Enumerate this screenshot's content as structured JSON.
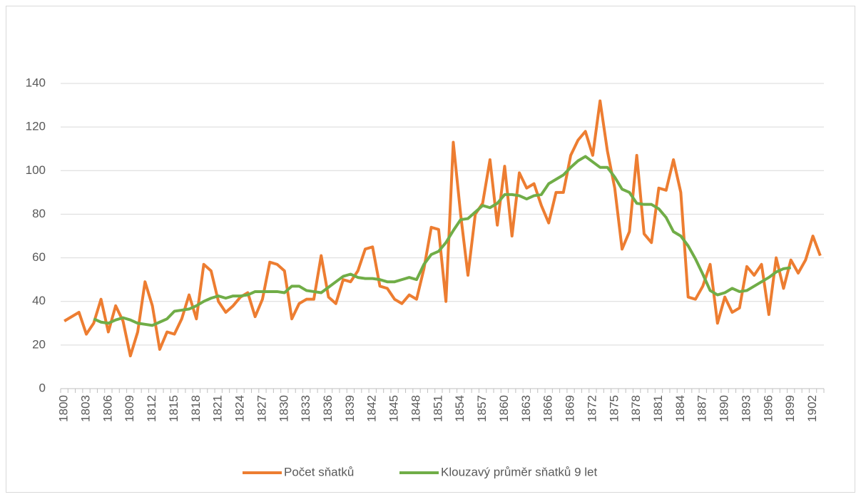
{
  "chart_data": {
    "type": "line",
    "categories": [
      "1800",
      null,
      null,
      "1803",
      null,
      null,
      "1806",
      null,
      null,
      "1809",
      null,
      null,
      "1812",
      null,
      null,
      "1815",
      null,
      null,
      "1818",
      null,
      null,
      "1821",
      null,
      null,
      "1824",
      null,
      null,
      "1827",
      null,
      null,
      "1830",
      null,
      null,
      "1833",
      null,
      null,
      "1836",
      null,
      null,
      "1839",
      null,
      null,
      "1842",
      null,
      null,
      "1845",
      null,
      null,
      "1848",
      null,
      null,
      "1851",
      null,
      null,
      "1854",
      null,
      null,
      "1857",
      null,
      null,
      "1860",
      null,
      null,
      "1863",
      null,
      null,
      "1866",
      null,
      null,
      "1869",
      null,
      null,
      "1872",
      null,
      null,
      "1875",
      null,
      null,
      "1878",
      null,
      null,
      "1881",
      null,
      null,
      "1884",
      null,
      null,
      "1887",
      null,
      null,
      "1890",
      null,
      null,
      "1893",
      null,
      null,
      "1896",
      null,
      null,
      "1899",
      null,
      null,
      "1902",
      null
    ],
    "series": [
      {
        "name": "Počet sňatků",
        "color": "#ed7d31",
        "values": [
          31,
          33,
          35,
          25,
          30,
          41,
          26,
          38,
          31,
          15,
          26,
          49,
          38,
          18,
          26,
          25,
          32,
          43,
          32,
          57,
          54,
          40,
          35,
          38,
          42,
          44,
          33,
          41,
          58,
          57,
          54,
          32,
          39,
          41,
          41,
          61,
          42,
          39,
          50,
          49,
          54,
          64,
          65,
          47,
          46,
          41,
          39,
          43,
          41,
          55,
          74,
          73,
          40,
          113,
          80,
          52,
          80,
          85,
          105,
          75,
          102,
          70,
          99,
          92,
          94,
          84,
          76,
          90,
          90,
          107,
          114,
          118,
          107,
          132,
          109,
          92,
          64,
          72,
          107,
          71,
          67,
          92,
          91,
          105,
          90,
          42,
          41,
          47,
          57,
          30,
          42,
          35,
          37,
          56,
          52,
          57,
          34,
          60,
          46,
          59,
          53,
          59,
          70,
          61
        ]
      },
      {
        "name": "Klouzavý průměr sňatků 9 let",
        "color": "#70ad47",
        "values": [
          null,
          null,
          null,
          null,
          32,
          30.5,
          30,
          31.5,
          32.5,
          31.5,
          30,
          29.5,
          29,
          30.5,
          32,
          35.5,
          36,
          36.5,
          38,
          40,
          41.5,
          42.5,
          41.5,
          42.5,
          42.5,
          43,
          44.5,
          44.5,
          44.5,
          44.5,
          44,
          47,
          47,
          45,
          44.5,
          44,
          46.5,
          49,
          51.5,
          52.5,
          51,
          50.5,
          50.5,
          50,
          49,
          49,
          50,
          51,
          50,
          57,
          61.5,
          63,
          67,
          72.5,
          77.5,
          78,
          81,
          84,
          83,
          85,
          89,
          89,
          88.5,
          87,
          88.5,
          89,
          94,
          96,
          98,
          101.5,
          104.5,
          106.5,
          104,
          101.5,
          101.5,
          97,
          91.5,
          90,
          85,
          84.5,
          84.5,
          82.5,
          78.5,
          72,
          70,
          65.5,
          59.5,
          52.5,
          45,
          43,
          44,
          46,
          44.5,
          45,
          47,
          49,
          51,
          53.5,
          55,
          55.5,
          null,
          null,
          null,
          null
        ]
      }
    ],
    "ylim": [
      0,
      140
    ],
    "yticks": [
      0,
      20,
      40,
      60,
      80,
      100,
      120,
      140
    ],
    "grid": true,
    "legend": "bottom"
  }
}
